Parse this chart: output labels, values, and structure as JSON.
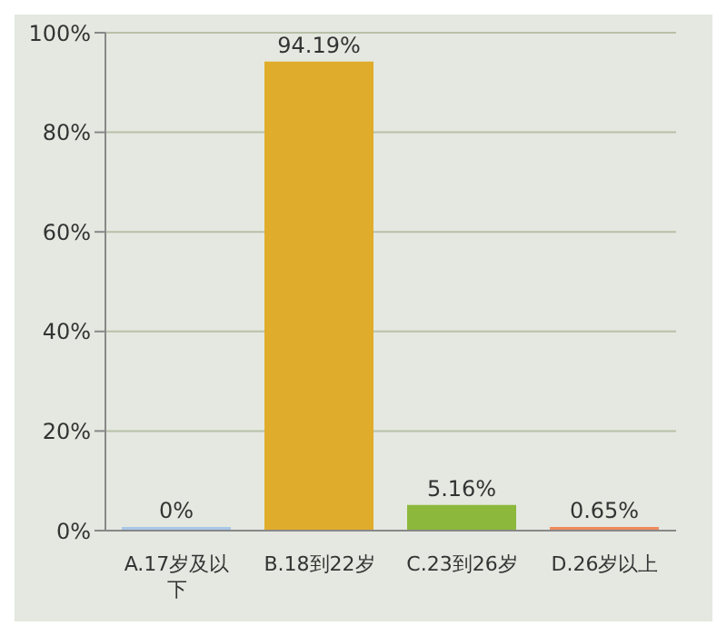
{
  "chart_data": {
    "type": "bar",
    "categories": [
      "A.17岁及以下",
      "B.18到22岁",
      "C.23到26岁",
      "D.26岁以上"
    ],
    "values": [
      0,
      94.19,
      5.16,
      0.65
    ],
    "colors": [
      "#a8c8e8",
      "#e0ac2c",
      "#8cb83c",
      "#f08a5c"
    ],
    "value_labels": [
      "0%",
      "94.19%",
      "5.16%",
      "0.65%"
    ],
    "ylim": [
      0,
      100
    ],
    "yticks": [
      {
        "value": 0,
        "label": "0%"
      },
      {
        "value": 20,
        "label": "20%"
      },
      {
        "value": 40,
        "label": "40%"
      },
      {
        "value": 60,
        "label": "60%"
      },
      {
        "value": 80,
        "label": "80%"
      },
      {
        "value": 100,
        "label": "100%"
      }
    ],
    "grid": "y"
  }
}
